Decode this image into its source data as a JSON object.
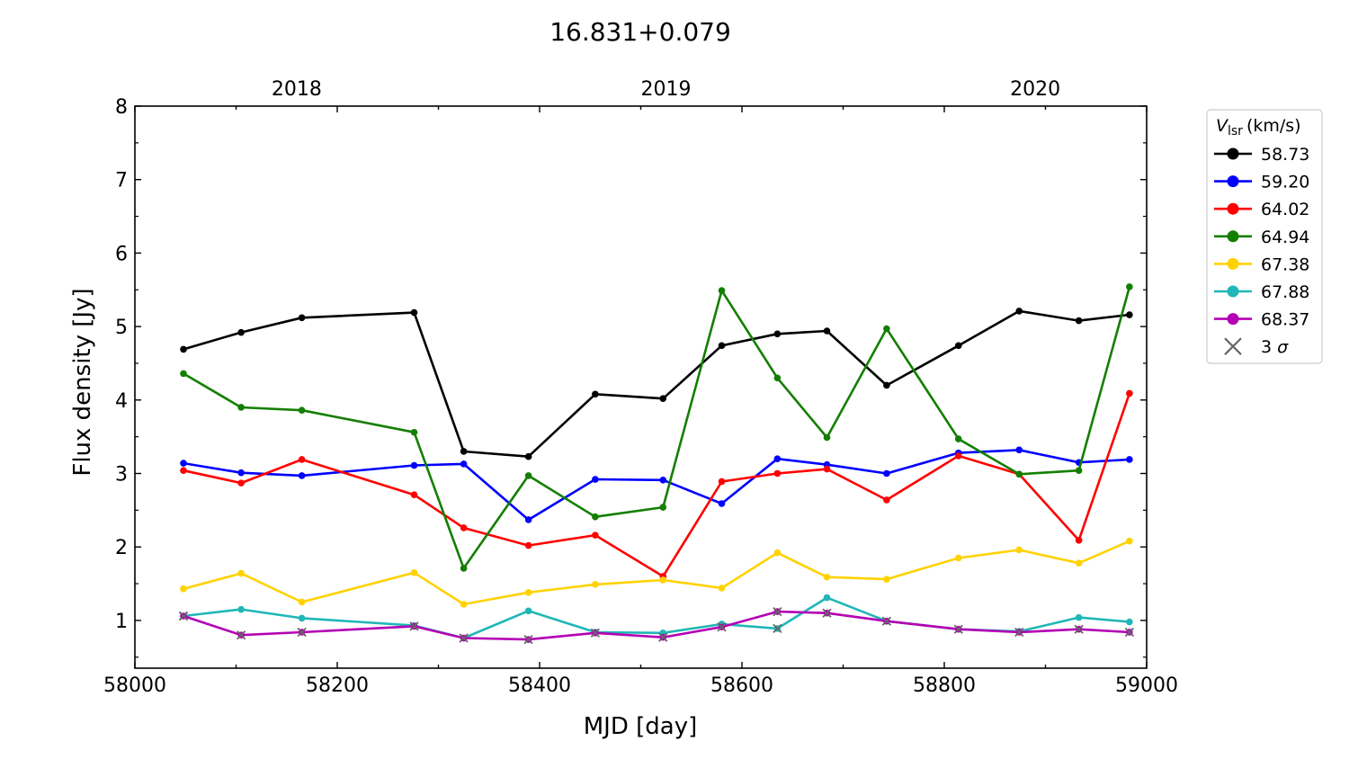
{
  "chart_data": {
    "type": "line",
    "title": "16.831+0.079",
    "xlabel": "MJD [day]",
    "ylabel": "Flux density [Jy]",
    "xlim": [
      58000,
      59000
    ],
    "ylim": [
      0.35,
      8
    ],
    "x_ticks": [
      58000,
      58200,
      58400,
      58600,
      58800,
      59000
    ],
    "y_ticks": [
      1,
      2,
      3,
      4,
      5,
      6,
      7,
      8
    ],
    "top_axis": {
      "ticks": [
        {
          "label": "2018",
          "mjd": 58119
        },
        {
          "label": "2019",
          "mjd": 58484
        },
        {
          "label": "2020",
          "mjd": 58849
        }
      ]
    },
    "grid": false,
    "legend": {
      "placement": "outside-right",
      "title_main": "V",
      "title_sub": "lsr",
      "title_unit": "(km/s)",
      "sigma_label": "3",
      "sigma_symbol": "σ",
      "sigma_color": "#666666"
    },
    "x": [
      58048,
      58105,
      58165,
      58276,
      58325,
      58389,
      58455,
      58522,
      58580,
      58635,
      58684,
      58743,
      58814,
      58874,
      58933,
      58983
    ],
    "series": [
      {
        "name": "58.73",
        "color": "#000000",
        "values": [
          4.69,
          4.92,
          5.12,
          5.19,
          3.3,
          3.23,
          4.08,
          4.02,
          4.74,
          4.9,
          4.94,
          4.2,
          4.74,
          5.21,
          5.08,
          5.16
        ],
        "limits": []
      },
      {
        "name": "59.20",
        "color": "#0000ff",
        "values": [
          3.14,
          3.01,
          2.97,
          3.11,
          3.13,
          2.37,
          2.92,
          2.91,
          2.59,
          3.2,
          3.12,
          3.0,
          3.28,
          3.32,
          3.15,
          3.19
        ],
        "limits": []
      },
      {
        "name": "64.02",
        "color": "#ff0000",
        "values": [
          3.04,
          2.87,
          3.19,
          2.71,
          2.26,
          2.02,
          2.16,
          1.6,
          2.89,
          3.0,
          3.06,
          2.64,
          3.24,
          2.99,
          2.09,
          4.09
        ],
        "limits": []
      },
      {
        "name": "64.94",
        "color": "#137f00",
        "values": [
          4.36,
          3.9,
          3.86,
          3.56,
          1.71,
          2.97,
          2.41,
          2.54,
          5.49,
          4.3,
          3.49,
          4.97,
          3.47,
          2.99,
          3.04,
          5.54
        ],
        "limits": []
      },
      {
        "name": "67.38",
        "color": "#ffd200",
        "values": [
          1.43,
          1.64,
          1.25,
          1.65,
          1.22,
          1.38,
          1.49,
          1.55,
          1.44,
          1.92,
          1.59,
          1.56,
          1.85,
          1.96,
          1.78,
          2.08
        ],
        "limits": []
      },
      {
        "name": "67.88",
        "color": "#1fb7b7",
        "values": [
          1.06,
          1.15,
          1.03,
          0.93,
          0.76,
          1.13,
          0.84,
          0.83,
          0.95,
          0.89,
          1.31,
          0.99,
          0.88,
          0.85,
          1.04,
          0.98
        ],
        "limits": [
          0,
          9
        ]
      },
      {
        "name": "68.37",
        "color": "#b400b4",
        "values": [
          1.06,
          0.8,
          0.84,
          0.92,
          0.76,
          0.74,
          0.83,
          0.77,
          0.91,
          1.12,
          1.1,
          0.99,
          0.88,
          0.84,
          0.88,
          0.84
        ],
        "limits": [
          0,
          1,
          2,
          3,
          4,
          5,
          6,
          7,
          8,
          9,
          10,
          11,
          12,
          13,
          14,
          15
        ]
      }
    ]
  }
}
